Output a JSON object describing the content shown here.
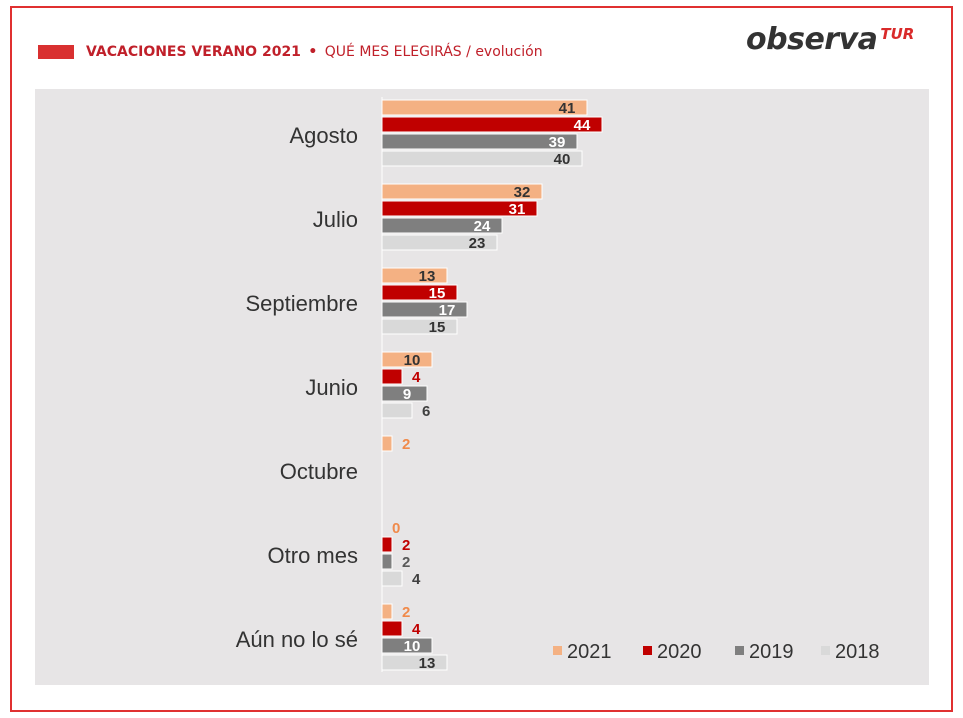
{
  "header": {
    "title_bold": "VACACIONES VERANO 2021",
    "separator": "•",
    "subtitle": "QUÉ MES ELEGIRÁS / evolución"
  },
  "logo": {
    "main": "observa",
    "accent": "TUR"
  },
  "colors": {
    "frame": "#e03030",
    "header_text": "#c0202a",
    "panel_bg": "#e7e5e6",
    "s2021": "#f4b183",
    "s2020": "#c00000",
    "s2019": "#7f7f7f",
    "s2018": "#d9d9d9"
  },
  "chart_data": {
    "type": "bar",
    "orientation": "horizontal",
    "title": "",
    "xlabel": "",
    "ylabel": "",
    "xlim": [
      0,
      44
    ],
    "grid": false,
    "legend": "bottom-right",
    "categories": [
      "Agosto",
      "Julio",
      "Septiembre",
      "Junio",
      "Octubre",
      "Otro mes",
      "Aún no lo sé"
    ],
    "series": [
      {
        "name": "2021",
        "color": "#f4b183",
        "label_color": "#333333",
        "values": [
          41,
          32,
          13,
          10,
          2,
          0,
          2
        ]
      },
      {
        "name": "2020",
        "color": "#c00000",
        "label_color": "#ffffff",
        "values": [
          44,
          31,
          15,
          4,
          null,
          2,
          4
        ]
      },
      {
        "name": "2019",
        "color": "#7f7f7f",
        "label_color": "#ffffff",
        "values": [
          39,
          24,
          17,
          9,
          null,
          2,
          10
        ]
      },
      {
        "name": "2018",
        "color": "#d9d9d9",
        "label_color": "#333333",
        "values": [
          40,
          23,
          15,
          6,
          null,
          4,
          13
        ]
      }
    ],
    "outside_label_colors": [
      "#f08a4b",
      "#c00000",
      "#595959",
      "#404040"
    ]
  }
}
